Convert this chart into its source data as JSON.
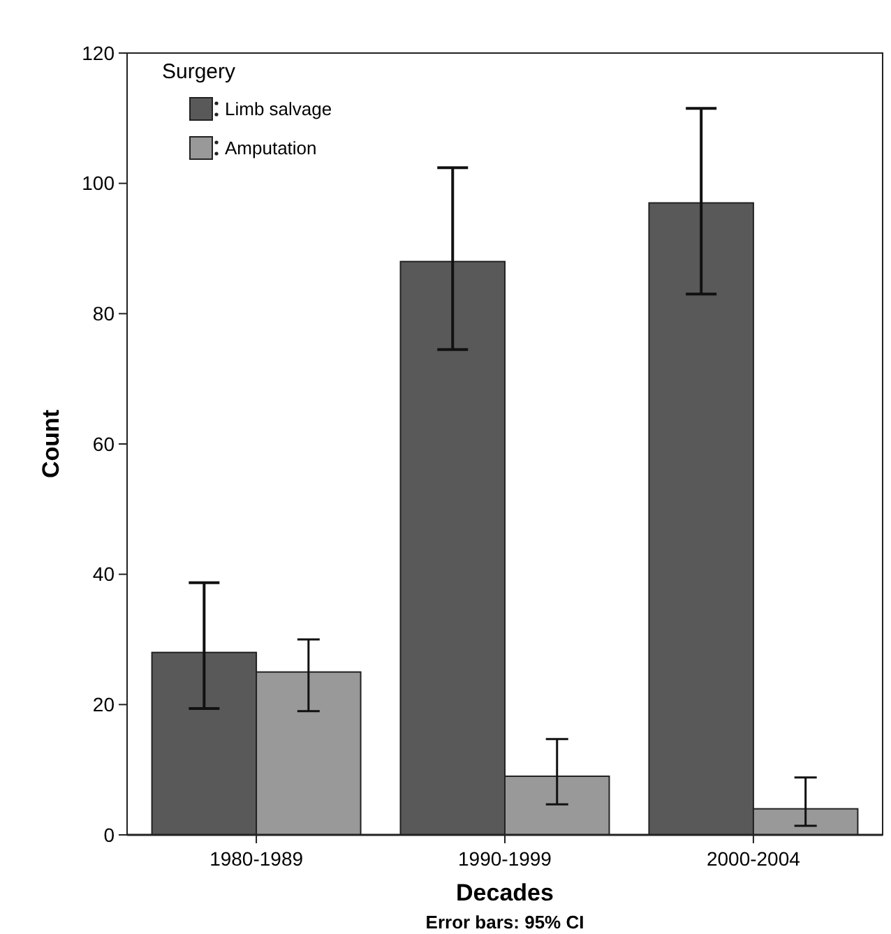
{
  "chart_data": {
    "type": "bar",
    "xlabel": "Decades",
    "ylabel": "Count",
    "legend_title": "Surgery",
    "legend": "top left",
    "grid": false,
    "categories": [
      "1980-1989",
      "1990-1999",
      "2000-2004"
    ],
    "ylim": [
      0,
      120
    ],
    "yticks": [
      0,
      20,
      40,
      60,
      80,
      100,
      120
    ],
    "series": [
      {
        "name": "Limb salvage",
        "color": "#595959",
        "values": [
          28,
          88,
          97
        ],
        "errors": [
          [
            19.4,
            38.7
          ],
          [
            74.5,
            102.4
          ],
          [
            83,
            111.5
          ]
        ]
      },
      {
        "name": "Amputation",
        "color": "#999999",
        "values": [
          25,
          9,
          4
        ],
        "errors": [
          [
            19,
            30
          ],
          [
            4.7,
            14.7
          ],
          [
            1.4,
            8.8
          ]
        ]
      }
    ],
    "annotations": [
      "Error bars: 95% CI"
    ]
  }
}
